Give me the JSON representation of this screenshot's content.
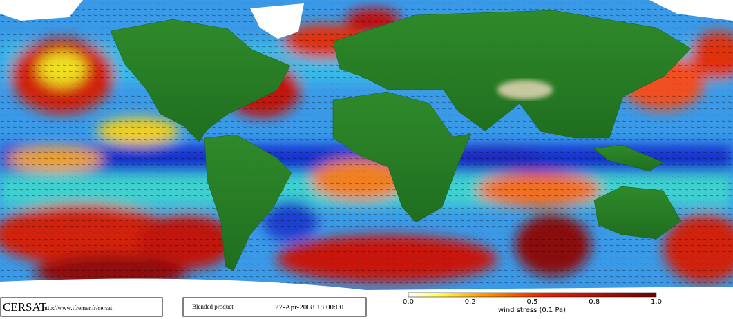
{
  "footer": {
    "logo": "CERSAT",
    "url": "http://www.ifremer.fr/cersat",
    "product": "Blended product",
    "timestamp": "27-Apr-2008 18:00:00"
  },
  "colorbar": {
    "ticks": [
      "0.0",
      "0.2",
      "0.5",
      "0.8",
      "1.0"
    ],
    "label": "wind stress (0.1 Pa)"
  }
}
